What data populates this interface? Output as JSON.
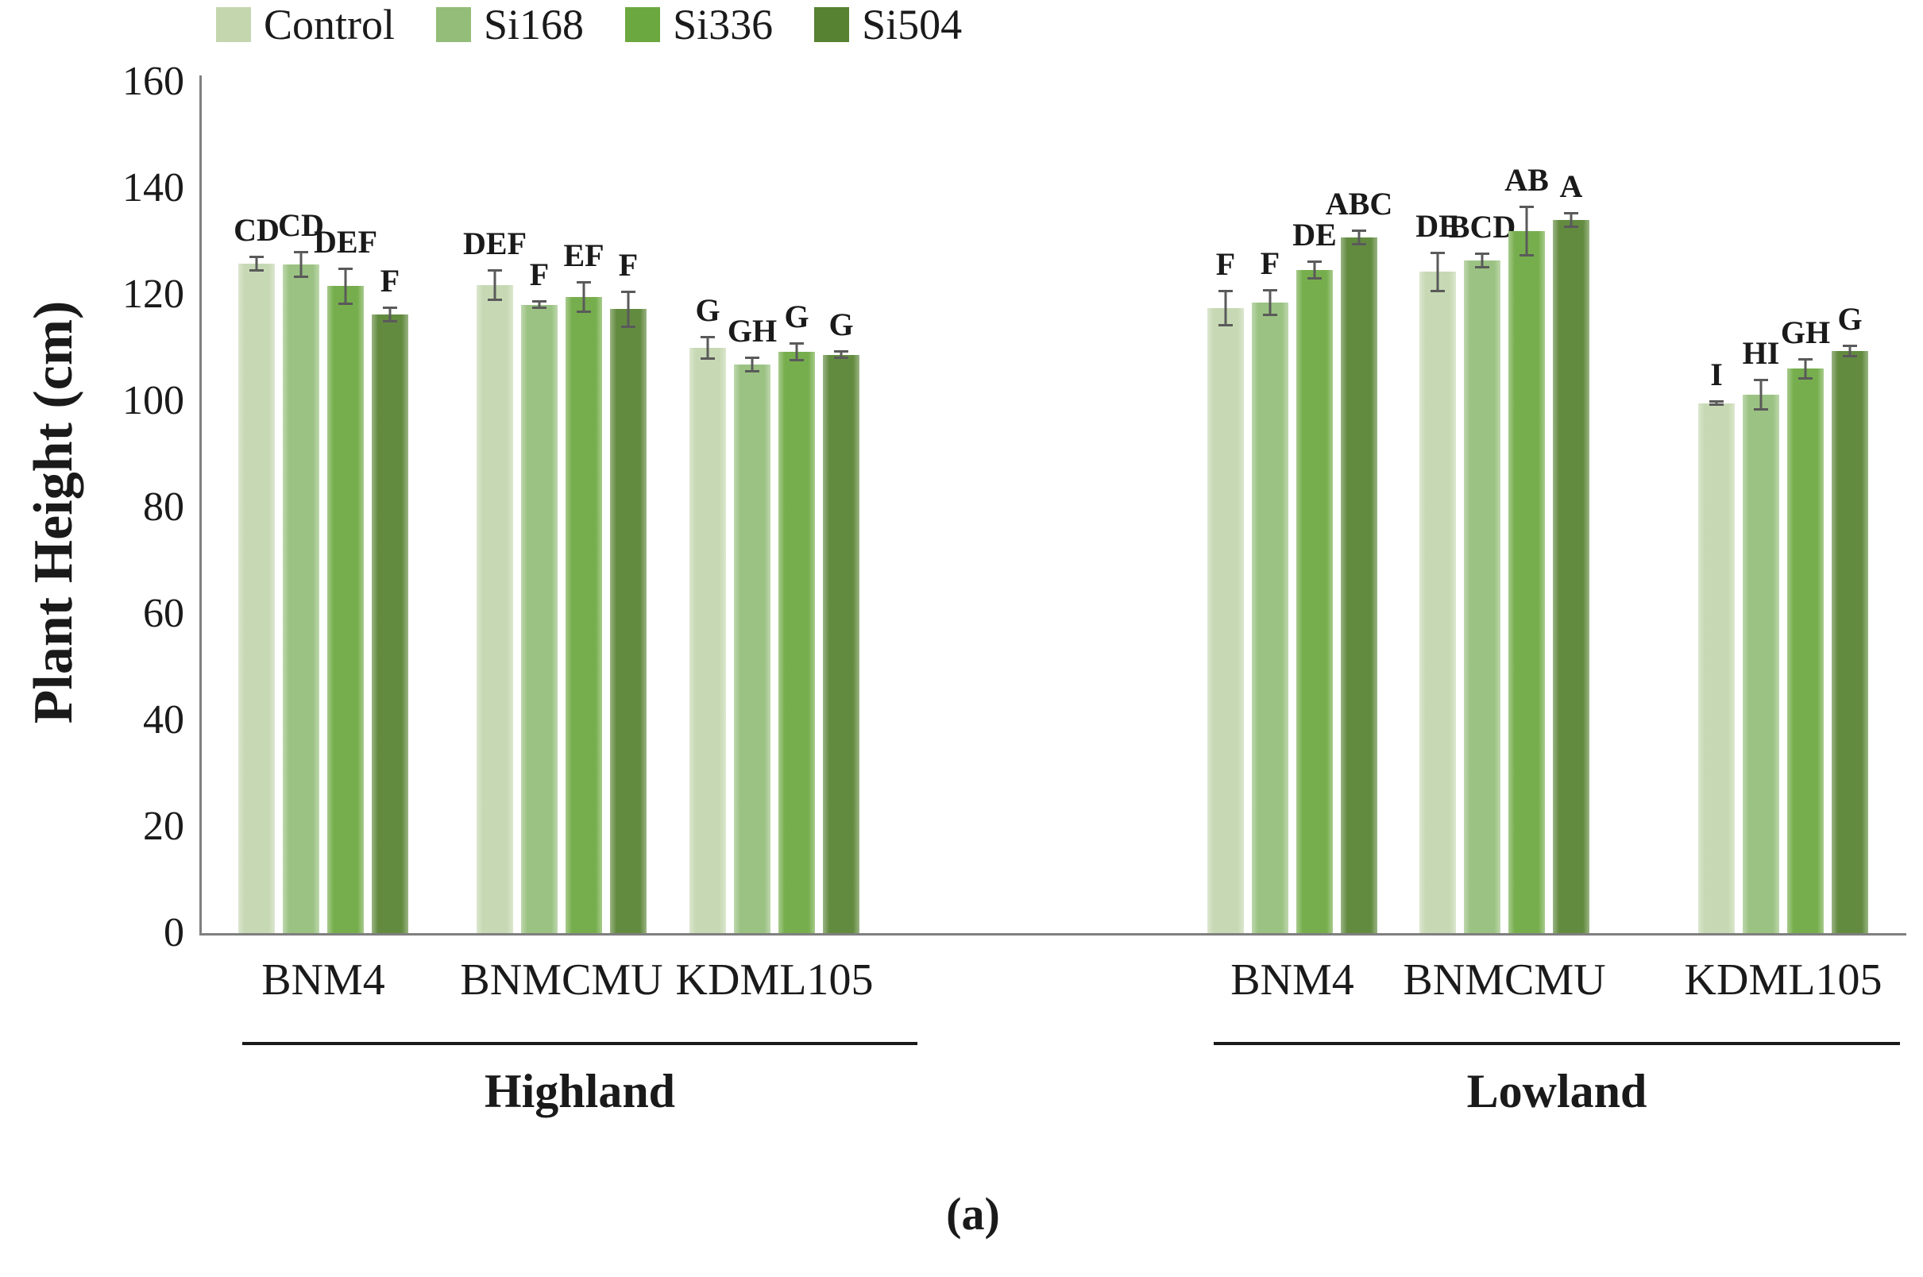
{
  "figure": {
    "caption": "(a)"
  },
  "chart_data": {
    "type": "bar",
    "title": "",
    "ylabel": "Plant Height (cm)",
    "xlabel": "",
    "ylim": [
      0,
      160
    ],
    "ytick_step": 20,
    "grid": false,
    "legend_position": "top-left",
    "error_bar_color": "#5a5a5a",
    "series": [
      {
        "name": "Control",
        "color": "#c3d6ae"
      },
      {
        "name": "Si168",
        "color": "#93bd78"
      },
      {
        "name": "Si336",
        "color": "#6ca840"
      },
      {
        "name": "Si504",
        "color": "#578232"
      }
    ],
    "clusters": [
      {
        "label": "Highland",
        "groups": [
          {
            "category": "BNM4",
            "bars": [
              {
                "treatment": "Control",
                "value": 125.8,
                "error": 1.5,
                "letter": "CD"
              },
              {
                "treatment": "Si168",
                "value": 125.7,
                "error": 2.5,
                "letter": "CD"
              },
              {
                "treatment": "Si336",
                "value": 121.6,
                "error": 3.5,
                "letter": "DEF"
              },
              {
                "treatment": "Si504",
                "value": 116.3,
                "error": 1.5,
                "letter": "F"
              }
            ]
          },
          {
            "category": "BNMCMU",
            "bars": [
              {
                "treatment": "Control",
                "value": 121.8,
                "error": 3.0,
                "letter": "DEF"
              },
              {
                "treatment": "Si168",
                "value": 118.1,
                "error": 0.8,
                "letter": "F"
              },
              {
                "treatment": "Si336",
                "value": 119.6,
                "error": 3.0,
                "letter": "EF"
              },
              {
                "treatment": "Si504",
                "value": 117.3,
                "error": 3.5,
                "letter": "F"
              }
            ]
          },
          {
            "category": "KDML105",
            "bars": [
              {
                "treatment": "Control",
                "value": 110.0,
                "error": 2.2,
                "letter": "G"
              },
              {
                "treatment": "Si168",
                "value": 106.9,
                "error": 1.5,
                "letter": "GH"
              },
              {
                "treatment": "Si336",
                "value": 109.3,
                "error": 1.8,
                "letter": "G"
              },
              {
                "treatment": "Si504",
                "value": 108.7,
                "error": 0.8,
                "letter": "G"
              }
            ]
          }
        ]
      },
      {
        "label": "Lowland",
        "groups": [
          {
            "category": "BNM4",
            "bars": [
              {
                "treatment": "Control",
                "value": 117.5,
                "error": 3.4,
                "letter": "F"
              },
              {
                "treatment": "Si168",
                "value": 118.5,
                "error": 2.5,
                "letter": "F"
              },
              {
                "treatment": "Si336",
                "value": 124.6,
                "error": 1.8,
                "letter": "DE"
              },
              {
                "treatment": "Si504",
                "value": 130.7,
                "error": 1.5,
                "letter": "ABC"
              }
            ]
          },
          {
            "category": "BNMCMU",
            "bars": [
              {
                "treatment": "Control",
                "value": 124.3,
                "error": 3.8,
                "letter": "DE"
              },
              {
                "treatment": "Si168",
                "value": 126.4,
                "error": 1.5,
                "letter": "BCD"
              },
              {
                "treatment": "Si336",
                "value": 131.9,
                "error": 4.8,
                "letter": "AB"
              },
              {
                "treatment": "Si504",
                "value": 134.0,
                "error": 1.5,
                "letter": "A"
              }
            ]
          },
          {
            "category": "KDML105",
            "bars": [
              {
                "treatment": "Control",
                "value": 99.6,
                "error": 0.5,
                "letter": "I"
              },
              {
                "treatment": "Si168",
                "value": 101.2,
                "error": 3.0,
                "letter": "HI"
              },
              {
                "treatment": "Si336",
                "value": 106.1,
                "error": 2.0,
                "letter": "GH"
              },
              {
                "treatment": "Si504",
                "value": 109.4,
                "error": 1.2,
                "letter": "G"
              }
            ]
          }
        ]
      }
    ]
  }
}
